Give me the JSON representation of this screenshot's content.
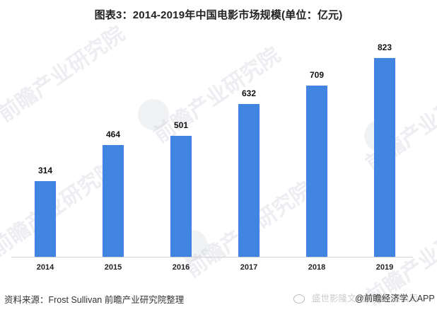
{
  "title": "图表3：2014-2019年中国电影市场规模(单位：亿元)",
  "chart_data": {
    "type": "bar",
    "title": "图表3：2014-2019年中国电影市场规模(单位：亿元)",
    "categories": [
      "2014",
      "2015",
      "2016",
      "2017",
      "2018",
      "2019"
    ],
    "values": [
      314,
      464,
      501,
      632,
      709,
      823
    ],
    "series": [
      {
        "name": "中国电影市场规模(亿元)",
        "values": [
          314,
          464,
          501,
          632,
          709,
          823
        ]
      }
    ],
    "xlabel": "",
    "ylabel": "",
    "unit": "亿元",
    "ylim": [
      0,
      900
    ],
    "grid": false,
    "legend": "none",
    "data_labels": true,
    "bar_color": "#4285E0"
  },
  "bars": [
    {
      "year": "2014",
      "value": "314"
    },
    {
      "year": "2015",
      "value": "464"
    },
    {
      "year": "2016",
      "value": "501"
    },
    {
      "year": "2017",
      "value": "632"
    },
    {
      "year": "2018",
      "value": "709"
    },
    {
      "year": "2019",
      "value": "823"
    }
  ],
  "source": "资料来源：Frost Sullivan 前瞻产业研究院整理",
  "credit": {
    "faint": "盛世影隆文化传播有限公司",
    "handle": "@前瞻经济学人APP"
  },
  "watermark": "前瞻产业研究院"
}
